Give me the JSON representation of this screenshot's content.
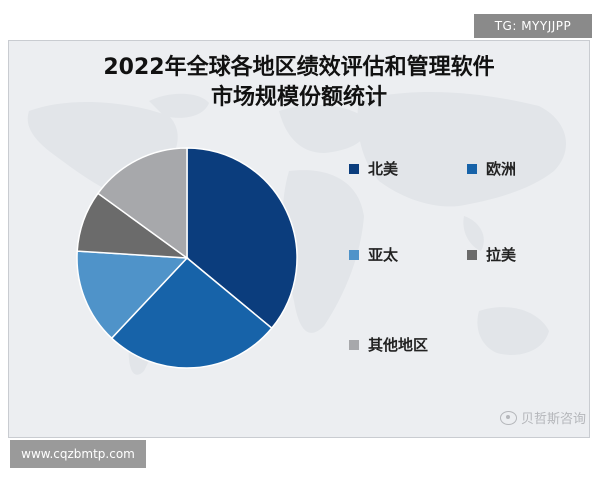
{
  "badge": "TG: MYYJJPP",
  "url_badge": "www.cqzbmtp.com",
  "watermark": "贝哲斯咨询",
  "chart_data": {
    "type": "pie",
    "title_lines": [
      "2022年全球各地区绩效评估和管理软件",
      "市场规模份额统计"
    ],
    "categories": [
      "北美",
      "欧洲",
      "亚太",
      "拉美",
      "其他地区"
    ],
    "values": [
      36,
      26,
      14,
      9,
      15
    ],
    "unit": "%",
    "colors": [
      "#0b3d7d",
      "#1763a9",
      "#4f93c9",
      "#6b6b6b",
      "#a7a8ab"
    ],
    "legend_position": "right",
    "grid": false
  }
}
